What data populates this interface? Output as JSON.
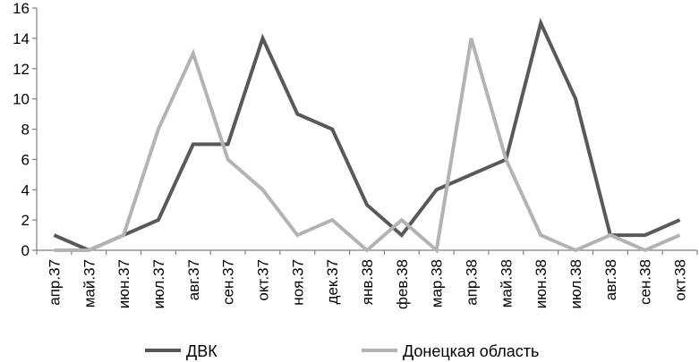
{
  "chart_data": {
    "type": "line",
    "title": "",
    "xlabel": "",
    "ylabel": "",
    "categories": [
      "апр.37",
      "май.37",
      "июн.37",
      "июл.37",
      "авг.37",
      "сен.37",
      "окт.37",
      "ноя.37",
      "дек.37",
      "янв.38",
      "фев.38",
      "мар.38",
      "апр.38",
      "май.38",
      "июн.38",
      "июл.38",
      "авг.38",
      "сен.38",
      "окт.38"
    ],
    "series": [
      {
        "name": "ДВК",
        "color": "#595959",
        "values": [
          1,
          0,
          1,
          2,
          7,
          7,
          14,
          9,
          8,
          3,
          1,
          4,
          5,
          6,
          15,
          10,
          1,
          1,
          2
        ]
      },
      {
        "name": "Донецкая область",
        "color": "#b3b3b3",
        "values": [
          0,
          0,
          1,
          8,
          13,
          6,
          4,
          1,
          2,
          0,
          2,
          0,
          14,
          6,
          1,
          0,
          1,
          0,
          1
        ]
      }
    ],
    "ylim": [
      0,
      16
    ],
    "yticks": [
      0,
      2,
      4,
      6,
      8,
      10,
      12,
      14,
      16
    ],
    "grid": false,
    "legend_position": "bottom"
  }
}
